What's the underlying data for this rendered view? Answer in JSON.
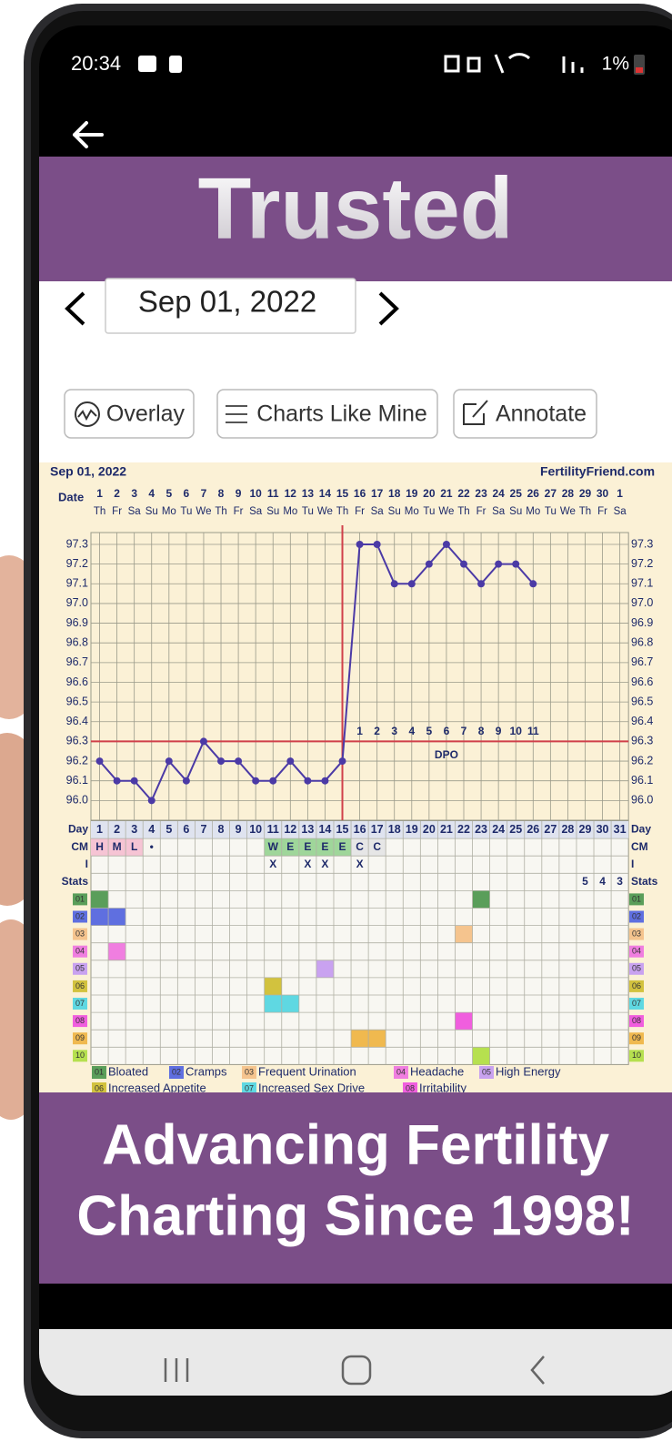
{
  "status_bar": {
    "time": "20:34",
    "battery": "1%"
  },
  "header_banner": {
    "text": "Trusted"
  },
  "date_picker": {
    "date": "Sep 01, 2022"
  },
  "toolbar": {
    "buttons": [
      "Overlay",
      "Charts Like Mine",
      "Annotate"
    ]
  },
  "chart_data": {
    "type": "line",
    "title": "Sep 01, 2022",
    "source": "FertilityFriend.com",
    "date_label": "Date",
    "dates": [
      1,
      2,
      3,
      4,
      5,
      6,
      7,
      8,
      9,
      10,
      11,
      12,
      13,
      14,
      15,
      16,
      17,
      18,
      19,
      20,
      21,
      22,
      23,
      24,
      25,
      26,
      27,
      28,
      29,
      30,
      1
    ],
    "weekdays": [
      "Th",
      "Fr",
      "Sa",
      "Su",
      "Mo",
      "Tu",
      "We",
      "Th",
      "Fr",
      "Sa",
      "Su",
      "Mo",
      "Tu",
      "We",
      "Th",
      "Fr",
      "Sa",
      "Su",
      "Mo",
      "Tu",
      "We",
      "Th",
      "Fr",
      "Sa",
      "Su",
      "Mo",
      "Tu",
      "We",
      "Th",
      "Fr",
      "Sa"
    ],
    "x": [
      1,
      2,
      3,
      4,
      5,
      6,
      7,
      8,
      9,
      10,
      11,
      12,
      13,
      14,
      15,
      16,
      17,
      18,
      19,
      20,
      21,
      22,
      23,
      24,
      25,
      26,
      27,
      28,
      29,
      30,
      31
    ],
    "series": [
      {
        "color": "#4b3aa6",
        "values": [
          96.2,
          96.1,
          96.1,
          96.0,
          96.2,
          96.1,
          96.3,
          96.2,
          96.2,
          96.1,
          96.1,
          96.2,
          96.1,
          96.1,
          96.2,
          97.3,
          97.3,
          97.1,
          97.1,
          97.2,
          97.3,
          97.2,
          97.1,
          97.2,
          97.2,
          97.1,
          null,
          null,
          null,
          null,
          null
        ]
      }
    ],
    "ylim": [
      95.9,
      97.36
    ],
    "yticks": [
      {
        "value": 96,
        "label": "96.0"
      },
      96.1,
      96.2,
      96.3,
      96.4,
      96.5,
      96.6,
      96.7,
      96.8,
      96.9,
      {
        "value": 97,
        "label": "97.0"
      },
      97.1,
      97.2,
      97.3
    ],
    "grid": true,
    "coverline": 96.3,
    "ovulation_day": 15,
    "line_color": "#d0404a",
    "dpo_label": "DPO",
    "dpo": [
      1,
      2,
      3,
      4,
      5,
      6,
      7,
      8,
      9,
      10,
      11
    ],
    "table": {
      "day_label": "Day",
      "cm_label": "CM",
      "i_label": "I",
      "stats_label": "Stats",
      "cm": [
        {
          "label": "H",
          "color": "#f6c4d4"
        },
        {
          "label": "M",
          "color": "#f6c4d4"
        },
        {
          "label": "L",
          "color": "#f6c4d4"
        },
        {
          "label": "•",
          "color": "#f7f5ee"
        },
        null,
        null,
        null,
        null,
        null,
        null,
        {
          "label": "W",
          "color": "#9fd69a"
        },
        {
          "label": "E",
          "color": "#9fd69a"
        },
        {
          "label": "E",
          "color": "#9fd69a"
        },
        {
          "label": "E",
          "color": "#9fd69a"
        },
        {
          "label": "E",
          "color": "#9fd69a"
        },
        {
          "label": "C",
          "color": "#e6e6e6"
        },
        {
          "label": "C",
          "color": "#e6e6e6"
        },
        null,
        null,
        null,
        null,
        null,
        null,
        null,
        null,
        null,
        null,
        null,
        null,
        null,
        null
      ],
      "intercourse": [
        null,
        null,
        null,
        null,
        null,
        null,
        null,
        null,
        null,
        null,
        "X",
        null,
        "X",
        "X",
        null,
        "X",
        null,
        null,
        null,
        null,
        null,
        null,
        null,
        null,
        null,
        null,
        null,
        null,
        null,
        null,
        null
      ],
      "stats": [
        null,
        null,
        null,
        null,
        null,
        null,
        null,
        null,
        null,
        null,
        null,
        null,
        null,
        null,
        null,
        null,
        null,
        null,
        null,
        null,
        null,
        null,
        null,
        null,
        null,
        null,
        null,
        null,
        5,
        4,
        3
      ]
    },
    "symptoms": [
      {
        "code": "01",
        "name": "Bloated",
        "color": "#5a9e5a",
        "days": [
          1,
          23
        ]
      },
      {
        "code": "02",
        "name": "Cramps",
        "color": "#5f6fe0",
        "days": [
          1,
          2
        ]
      },
      {
        "code": "03",
        "name": "Frequent Urination",
        "color": "#f5c48e",
        "days": [
          22
        ]
      },
      {
        "code": "04",
        "name": "Headache",
        "color": "#f07ee0",
        "days": [
          2
        ]
      },
      {
        "code": "05",
        "name": "High Energy",
        "color": "#c9a2f0",
        "days": [
          14
        ]
      },
      {
        "code": "06",
        "name": "Increased Appetite",
        "color": "#d2c23e",
        "days": [
          11
        ]
      },
      {
        "code": "07",
        "name": "Increased Sex Drive",
        "color": "#5fd8e2",
        "days": [
          11,
          12
        ]
      },
      {
        "code": "08",
        "name": "Irritability",
        "color": "#f05ede",
        "days": [
          22
        ]
      },
      {
        "code": "09",
        "color": "#f0b94f",
        "days": [
          16,
          17
        ]
      },
      {
        "code": "10",
        "color": "#b6e04f",
        "days": [
          23
        ]
      }
    ]
  },
  "footer_banner": {
    "lines": [
      "Advancing Fertility",
      "Charting Since 1998!"
    ]
  }
}
